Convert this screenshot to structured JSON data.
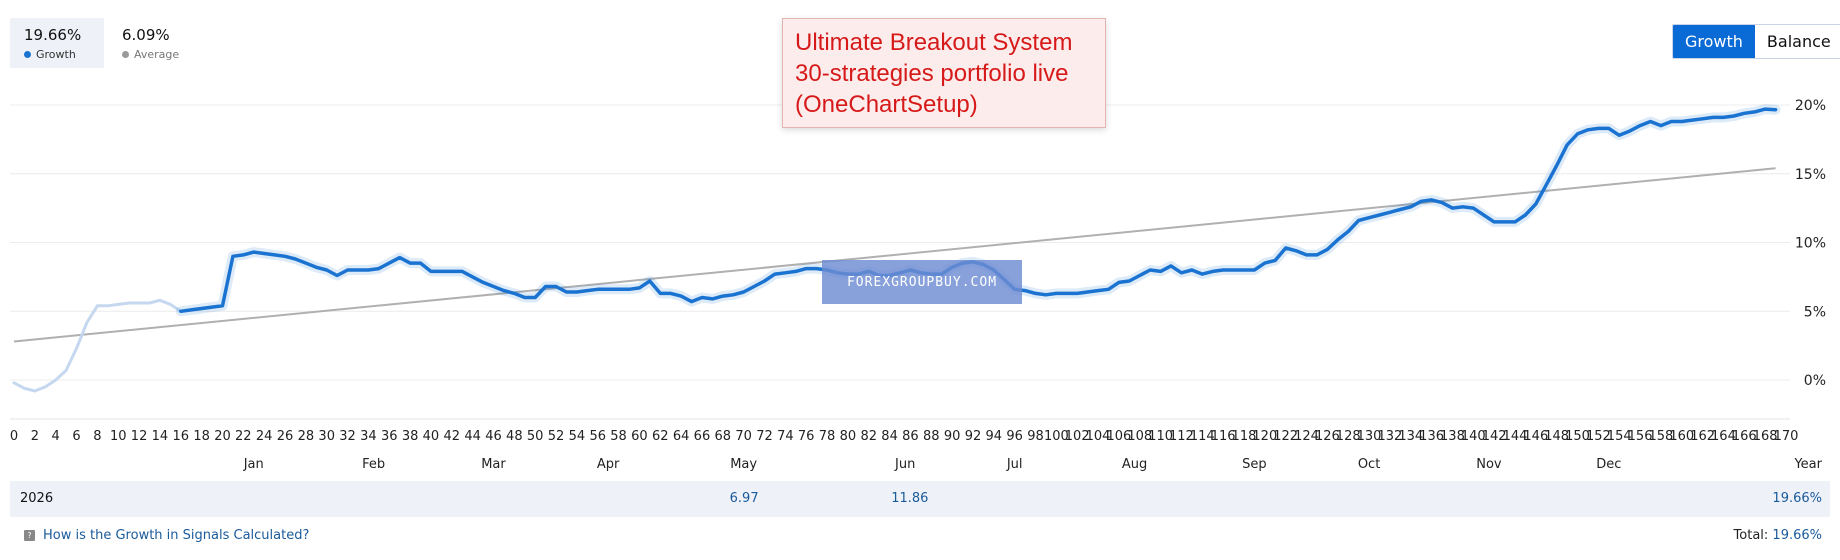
{
  "summary": {
    "growth": {
      "value": "19.66%",
      "label": "Growth",
      "color": "#1a73d1"
    },
    "average": {
      "value": "6.09%",
      "label": "Average",
      "color": "#999999"
    }
  },
  "toggle": {
    "growth_label": "Growth",
    "balance_label": "Balance",
    "accent": "#0a6ad6"
  },
  "overlay": {
    "title_lines": [
      "Ultimate Breakout System",
      "30-strategies portfolio live",
      "(OneChartSetup)"
    ],
    "title_color": "#d61a1a",
    "watermark": "FOREXGROUPBUY.COM"
  },
  "chart_data": {
    "type": "line",
    "x_ticks": [
      0,
      2,
      4,
      6,
      8,
      10,
      12,
      14,
      16,
      18,
      20,
      22,
      24,
      26,
      28,
      30,
      32,
      34,
      36,
      38,
      40,
      42,
      44,
      46,
      48,
      50,
      52,
      54,
      56,
      58,
      60,
      62,
      64,
      66,
      68,
      70,
      72,
      74,
      76,
      78,
      80,
      82,
      84,
      86,
      88,
      90,
      92,
      94,
      96,
      98,
      100,
      102,
      104,
      106,
      108,
      110,
      112,
      114,
      116,
      118,
      120,
      122,
      124,
      126,
      128,
      130,
      132,
      134,
      136,
      138,
      140,
      142,
      144,
      146,
      148,
      150,
      152,
      154,
      156,
      158,
      160,
      162,
      164,
      166,
      168,
      170
    ],
    "y_ticks": [
      0,
      5,
      10,
      15,
      20
    ],
    "y_tick_suffix": "%",
    "xlim": [
      0,
      170
    ],
    "ylim": [
      -3,
      22
    ],
    "months": [
      {
        "label": "Jan",
        "x": 23
      },
      {
        "label": "Feb",
        "x": 34.5
      },
      {
        "label": "Mar",
        "x": 46
      },
      {
        "label": "Apr",
        "x": 57
      },
      {
        "label": "May",
        "x": 70
      },
      {
        "label": "Jun",
        "x": 85.5
      },
      {
        "label": "Jul",
        "x": 96
      },
      {
        "label": "Aug",
        "x": 107.5
      },
      {
        "label": "Sep",
        "x": 119
      },
      {
        "label": "Oct",
        "x": 130
      },
      {
        "label": "Nov",
        "x": 141.5
      },
      {
        "label": "Dec",
        "x": 153
      }
    ],
    "year_label": "Year",
    "grid": true,
    "series": [
      {
        "name": "Growth",
        "color": "#1a73d1",
        "faded_color": "#c5d8f0",
        "faded_until": 16,
        "points": [
          [
            0,
            -0.2
          ],
          [
            1,
            -0.6
          ],
          [
            2,
            -0.8
          ],
          [
            3,
            -0.5
          ],
          [
            4,
            0
          ],
          [
            5,
            0.7
          ],
          [
            6,
            2.3
          ],
          [
            7,
            4.2
          ],
          [
            8,
            5.4
          ],
          [
            9,
            5.4
          ],
          [
            10,
            5.5
          ],
          [
            11,
            5.6
          ],
          [
            12,
            5.6
          ],
          [
            13,
            5.6
          ],
          [
            14,
            5.8
          ],
          [
            15,
            5.5
          ],
          [
            16,
            5.0
          ],
          [
            17,
            5.1
          ],
          [
            18,
            5.2
          ],
          [
            19,
            5.3
          ],
          [
            20,
            5.4
          ],
          [
            21,
            9.0
          ],
          [
            22,
            9.1
          ],
          [
            23,
            9.3
          ],
          [
            24,
            9.2
          ],
          [
            25,
            9.1
          ],
          [
            26,
            9.0
          ],
          [
            27,
            8.8
          ],
          [
            28,
            8.5
          ],
          [
            29,
            8.2
          ],
          [
            30,
            8.0
          ],
          [
            31,
            7.6
          ],
          [
            32,
            8.0
          ],
          [
            33,
            8.0
          ],
          [
            34,
            8.0
          ],
          [
            35,
            8.1
          ],
          [
            36,
            8.5
          ],
          [
            37,
            8.9
          ],
          [
            38,
            8.5
          ],
          [
            39,
            8.5
          ],
          [
            40,
            7.9
          ],
          [
            41,
            7.9
          ],
          [
            42,
            7.9
          ],
          [
            43,
            7.9
          ],
          [
            44,
            7.5
          ],
          [
            45,
            7.1
          ],
          [
            46,
            6.8
          ],
          [
            47,
            6.5
          ],
          [
            48,
            6.3
          ],
          [
            49,
            6.0
          ],
          [
            50,
            6.0
          ],
          [
            51,
            6.8
          ],
          [
            52,
            6.8
          ],
          [
            53,
            6.4
          ],
          [
            54,
            6.4
          ],
          [
            55,
            6.5
          ],
          [
            56,
            6.6
          ],
          [
            57,
            6.6
          ],
          [
            58,
            6.6
          ],
          [
            59,
            6.6
          ],
          [
            60,
            6.7
          ],
          [
            61,
            7.2
          ],
          [
            62,
            6.3
          ],
          [
            63,
            6.3
          ],
          [
            64,
            6.1
          ],
          [
            65,
            5.7
          ],
          [
            66,
            6.0
          ],
          [
            67,
            5.9
          ],
          [
            68,
            6.1
          ],
          [
            69,
            6.2
          ],
          [
            70,
            6.4
          ],
          [
            71,
            6.8
          ],
          [
            72,
            7.2
          ],
          [
            73,
            7.7
          ],
          [
            74,
            7.8
          ],
          [
            75,
            7.9
          ],
          [
            76,
            8.1
          ],
          [
            77,
            8.1
          ],
          [
            78,
            8.0
          ],
          [
            79,
            7.8
          ],
          [
            80,
            7.7
          ],
          [
            81,
            7.7
          ],
          [
            82,
            7.9
          ],
          [
            83,
            7.6
          ],
          [
            84,
            7.6
          ],
          [
            85,
            7.8
          ],
          [
            86,
            8.0
          ],
          [
            87,
            7.8
          ],
          [
            88,
            7.7
          ],
          [
            89,
            7.7
          ],
          [
            90,
            8.2
          ],
          [
            91,
            8.5
          ],
          [
            92,
            8.6
          ],
          [
            93,
            8.4
          ],
          [
            94,
            8.0
          ],
          [
            95,
            7.3
          ],
          [
            96,
            6.6
          ],
          [
            97,
            6.5
          ],
          [
            98,
            6.3
          ],
          [
            99,
            6.2
          ],
          [
            100,
            6.3
          ],
          [
            101,
            6.3
          ],
          [
            102,
            6.3
          ],
          [
            103,
            6.4
          ],
          [
            104,
            6.5
          ],
          [
            105,
            6.6
          ],
          [
            106,
            7.1
          ],
          [
            107,
            7.2
          ],
          [
            108,
            7.6
          ],
          [
            109,
            8.0
          ],
          [
            110,
            7.9
          ],
          [
            111,
            8.3
          ],
          [
            112,
            7.8
          ],
          [
            113,
            8.0
          ],
          [
            114,
            7.7
          ],
          [
            115,
            7.9
          ],
          [
            116,
            8.0
          ],
          [
            117,
            8.0
          ],
          [
            118,
            8.0
          ],
          [
            119,
            8.0
          ],
          [
            120,
            8.5
          ],
          [
            121,
            8.7
          ],
          [
            122,
            9.6
          ],
          [
            123,
            9.4
          ],
          [
            124,
            9.1
          ],
          [
            125,
            9.1
          ],
          [
            126,
            9.5
          ],
          [
            127,
            10.2
          ],
          [
            128,
            10.8
          ],
          [
            129,
            11.6
          ],
          [
            130,
            11.8
          ],
          [
            131,
            12.0
          ],
          [
            132,
            12.2
          ],
          [
            133,
            12.4
          ],
          [
            134,
            12.6
          ],
          [
            135,
            13.0
          ],
          [
            136,
            13.1
          ],
          [
            137,
            12.9
          ],
          [
            138,
            12.5
          ],
          [
            139,
            12.6
          ],
          [
            140,
            12.5
          ],
          [
            141,
            12.0
          ],
          [
            142,
            11.5
          ],
          [
            143,
            11.5
          ],
          [
            144,
            11.5
          ],
          [
            145,
            12.0
          ],
          [
            146,
            12.8
          ],
          [
            147,
            14.2
          ],
          [
            148,
            15.6
          ],
          [
            149,
            17.1
          ],
          [
            150,
            17.9
          ],
          [
            151,
            18.2
          ],
          [
            152,
            18.3
          ],
          [
            153,
            18.3
          ],
          [
            154,
            17.8
          ],
          [
            155,
            18.1
          ],
          [
            156,
            18.5
          ],
          [
            157,
            18.8
          ],
          [
            158,
            18.5
          ],
          [
            159,
            18.8
          ],
          [
            160,
            18.8
          ],
          [
            161,
            18.9
          ],
          [
            162,
            19.0
          ],
          [
            163,
            19.1
          ],
          [
            164,
            19.1
          ],
          [
            165,
            19.2
          ],
          [
            166,
            19.4
          ],
          [
            167,
            19.5
          ],
          [
            168,
            19.7
          ],
          [
            169,
            19.66
          ]
        ]
      },
      {
        "name": "Average",
        "color": "#b0b0b0",
        "points": [
          [
            0,
            2.8
          ],
          [
            169,
            15.4
          ]
        ]
      }
    ]
  },
  "year_row": {
    "year": "2026",
    "values": [
      {
        "text": "6.97",
        "month_index": 4
      },
      {
        "text": "11.86",
        "month_index": 5
      }
    ],
    "total": "19.66%"
  },
  "footer": {
    "help_text": "How is the Growth in Signals Calculated?",
    "total_label": "Total:",
    "total_value": "19.66%"
  }
}
